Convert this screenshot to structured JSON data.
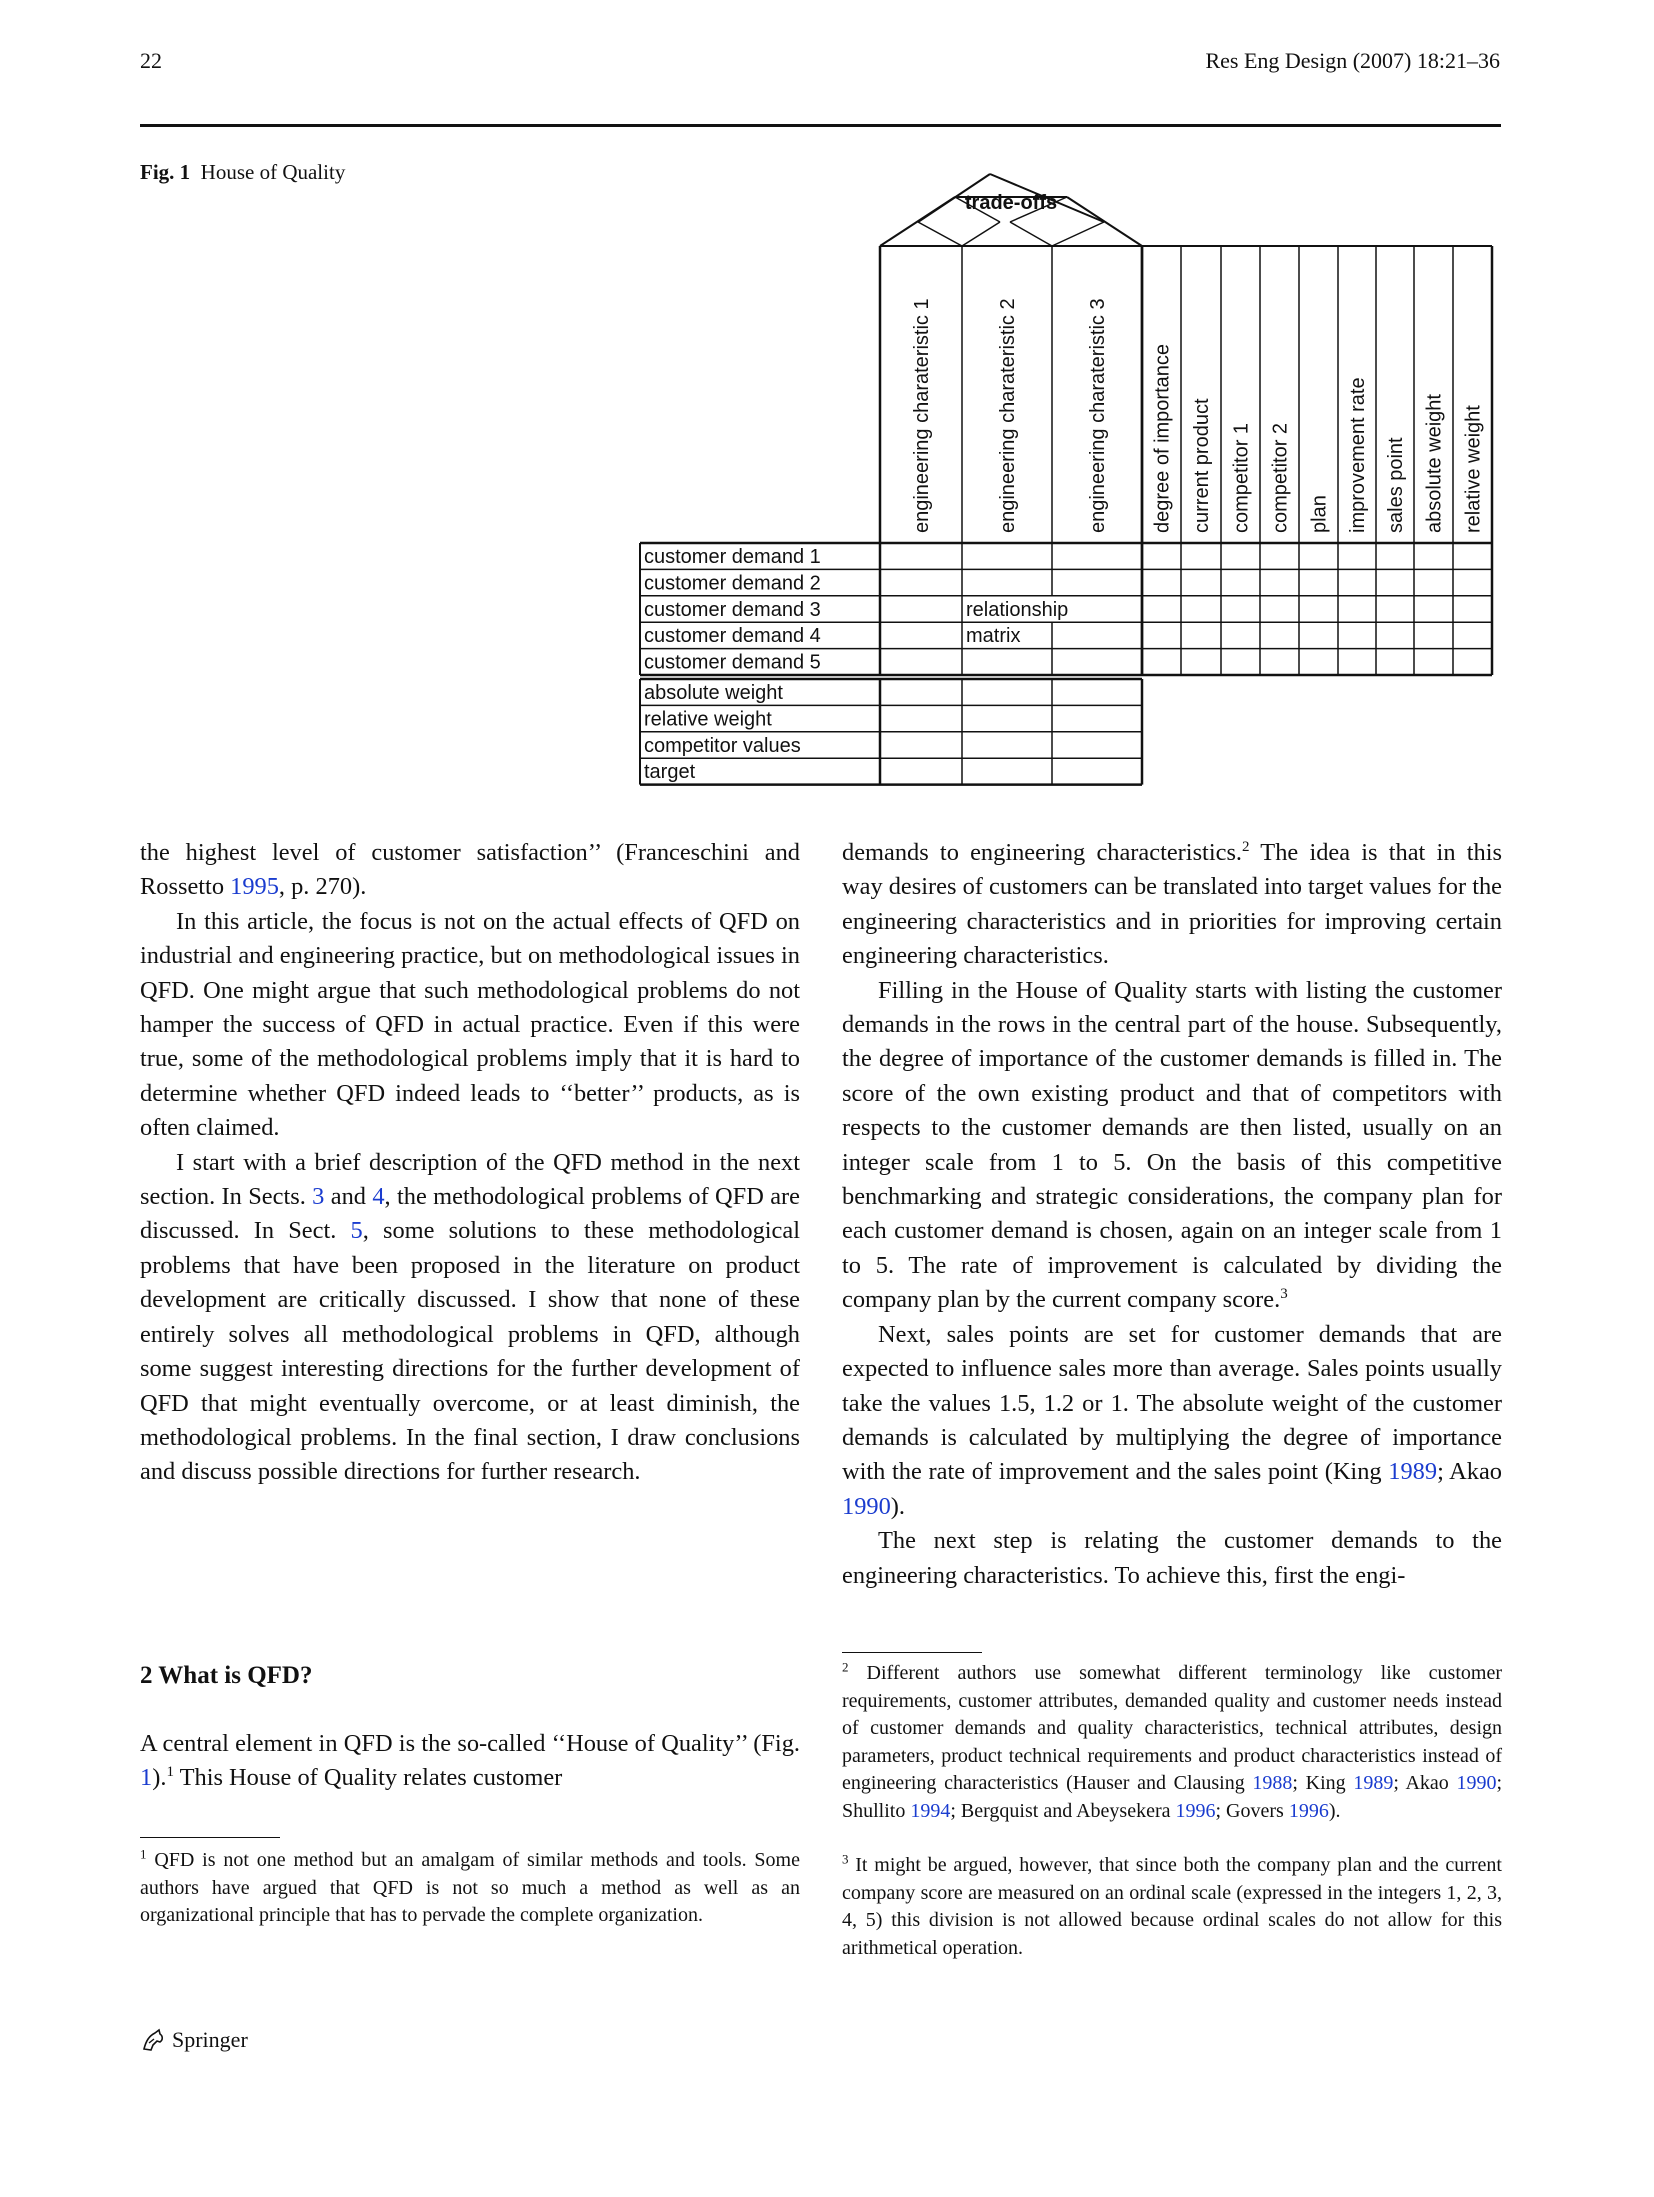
{
  "header": {
    "page_number": "22",
    "journal": "Res Eng Design (2007) 18:21–36"
  },
  "figure": {
    "label": "Fig. 1",
    "caption": "House of Quality",
    "roof_label": "trade-offs",
    "engineering_columns": [
      "engineering charateristic 1",
      "engineering charateristic 2",
      "engineering charateristic 3"
    ],
    "planning_columns": [
      "degree of importance",
      "current product",
      "competitor 1",
      "competitor 2",
      "plan",
      "improvement rate",
      "sales point",
      "absolute weight",
      "relative weight"
    ],
    "customer_rows": [
      "customer demand 1",
      "customer demand 2",
      "customer demand 3",
      "customer demand 4",
      "customer demand 5"
    ],
    "bottom_rows": [
      "absolute weight",
      "relative weight",
      "competitor values",
      "target"
    ],
    "matrix_label_line1": "relationship",
    "matrix_label_line2": "matrix"
  },
  "left_column": {
    "p1": "the highest level of customer satisfaction’’ (Franceschini and Rossetto ",
    "p1_cite": "1995",
    "p1_end": ", p. 270).",
    "p2": "In this article, the focus is not on the actual effects of QFD on industrial and engineering practice, but on meth­odological issues in QFD. One might argue that such methodological problems do not hamper the success of QFD in actual practice. Even if this were true, some of the methodological problems imply that it is hard to determine whether QFD indeed leads to ‘‘better’’ products, as is often claimed.",
    "p3_a": "I start with a brief description of the QFD method in the next section. In Sects. ",
    "p3_cite1": "3",
    "p3_b": " and ",
    "p3_cite2": "4",
    "p3_c": ", the methodological prob­lems of QFD are discussed. In Sect. ",
    "p3_cite3": "5",
    "p3_d": ", some solutions to these methodological problems that have been proposed in the literature on product development are critically dis­cussed. I show that none of these entirely solves all methodological problems in QFD, although some suggest interesting directions for the further development of QFD that might eventually overcome, or at least diminish, the methodological problems. In the final section, I draw conclusions and discuss possible directions for further re­search."
  },
  "section": {
    "heading": "2  What is QFD?",
    "body_a": "A central element in QFD is the so-called ‘‘House of Quality’’ (Fig. ",
    "body_cite": "1",
    "body_b": ").",
    "body_sup": "1",
    "body_c": " This House of Quality relates customer"
  },
  "right_column": {
    "p1_a": "demands to engineering characteristics.",
    "p1_sup": "2",
    "p1_b": " The idea is that in this way desires of customers can be translated into target values for the engineering characteristics and in priorities for improving certain engineering characteristics.",
    "p2_a": "Filling in the House of Quality starts with listing the customer demands in the rows in the central part of the house. Subsequently, the degree of importance of the cus­tomer demands is filled in. The score of the own existing product and that of competitors with respects to the cus­tomer demands are then listed, usually on an integer scale from 1 to 5. On the basis of this competitive benchmarking and strategic considerations, the company plan for each customer demand is chosen, again on an integer scale from 1 to 5. The rate of improvement is calculated by dividing the company plan by the current company score.",
    "p2_sup": "3",
    "p3_a": "Next, sales points are set for customer demands that are expected to influence sales more than average. Sales points usually take the values 1.5, 1.2 or 1. The absolute weight of the customer demands is calculated by multiplying the degree of importance with the rate of improvement and the sales point (King ",
    "p3_cite1": "1989",
    "p3_b": "; Akao ",
    "p3_cite2": "1990",
    "p3_c": ").",
    "p4": "The next step is relating the customer demands to the engineering characteristics. To achieve this, first the engi-"
  },
  "footnotes": {
    "fn1_num": "1",
    "fn1": " QFD is not one method but an amalgam of similar methods and tools. Some authors have argued that QFD is not so much a method as well as an organizational principle that has to pervade the complete organization.",
    "fn2_num": "2",
    "fn2_a": " Different authors use somewhat different terminology like customer requirements, customer attributes, demanded quality and customer needs instead of customer demands and quality characteristics, technical attributes, design parameters, product technical require­ments and product characteristics instead of engineering characteris­tics (Hauser and Clausing ",
    "fn2_c1": "1988",
    "fn2_b": "; King ",
    "fn2_c2": "1989",
    "fn2_c": "; Akao ",
    "fn2_c3": "1990",
    "fn2_d": "; Shullito ",
    "fn2_c4": "1994",
    "fn2_e": "; Bergquist and Abeysekera ",
    "fn2_c5": "1996",
    "fn2_f": "; Govers ",
    "fn2_c6": "1996",
    "fn2_g": ").",
    "fn3_num": "3",
    "fn3": " It might be argued, however, that since both the company plan and the current company score are measured on an ordinal scale (ex­pressed in the integers 1, 2, 3, 4, 5) this division is not allowed because ordinal scales do not allow for this arithmetical operation."
  },
  "footer": {
    "publisher": "Springer"
  }
}
